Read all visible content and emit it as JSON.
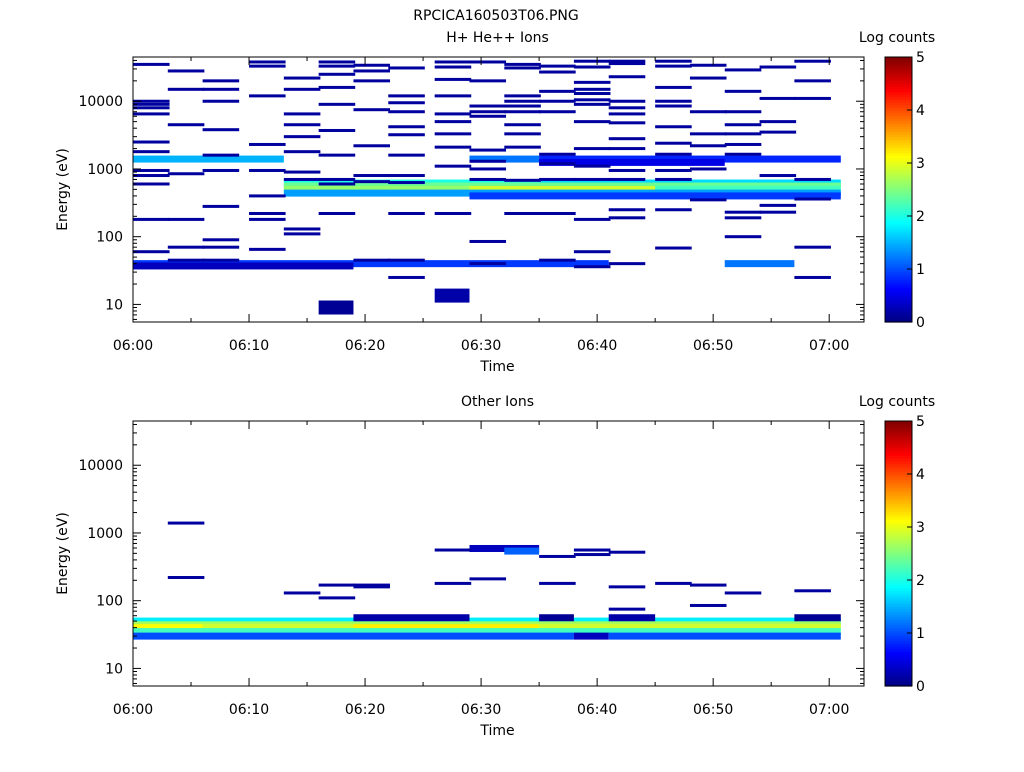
{
  "figure_title": "RPCICA160503T06.PNG",
  "colorbar": {
    "label": "Log counts",
    "ticks": [
      "0",
      "1",
      "2",
      "3",
      "4",
      "5"
    ]
  },
  "chart_data": [
    {
      "type": "heatmap",
      "title": "H+ He++ Ions",
      "xlabel": "Time",
      "ylabel": "Energy (eV)",
      "y_scale": "log",
      "xlim": [
        "06:00",
        "07:03"
      ],
      "ylim": [
        5.5,
        45000
      ],
      "x_ticks": [
        "06:00",
        "06:10",
        "06:20",
        "06:30",
        "06:40",
        "06:50",
        "07:00"
      ],
      "y_ticks": [
        "10",
        "100",
        "1000",
        "10000"
      ],
      "color_scale": {
        "name": "jet",
        "min": 0,
        "max": 5,
        "label": "Log counts"
      },
      "rows": [
        {
          "energy_ev": 1400,
          "start": "06:00",
          "end": "06:13",
          "log_counts": 1.5
        },
        {
          "energy_ev": 1400,
          "start": "06:29",
          "end": "06:35",
          "log_counts": 1.2
        },
        {
          "energy_ev": 1400,
          "start": "06:35",
          "end": "07:01",
          "log_counts": 0.8
        },
        {
          "energy_ev": 1250,
          "start": "06:35",
          "end": "06:51",
          "log_counts": 0.5
        },
        {
          "energy_ev": 620,
          "start": "06:13",
          "end": "06:35",
          "log_counts": 2.0
        },
        {
          "energy_ev": 620,
          "start": "06:35",
          "end": "07:01",
          "log_counts": 1.7
        },
        {
          "energy_ev": 560,
          "start": "06:13",
          "end": "07:01",
          "log_counts": 2.4
        },
        {
          "energy_ev": 500,
          "start": "06:13",
          "end": "06:29",
          "log_counts": 2.6
        },
        {
          "energy_ev": 500,
          "start": "06:29",
          "end": "06:45",
          "log_counts": 2.9
        },
        {
          "energy_ev": 500,
          "start": "06:45",
          "end": "07:01",
          "log_counts": 2.2
        },
        {
          "energy_ev": 440,
          "start": "06:13",
          "end": "07:01",
          "log_counts": 1.4
        },
        {
          "energy_ev": 400,
          "start": "06:29",
          "end": "07:01",
          "log_counts": 0.9
        },
        {
          "energy_ev": 40,
          "start": "06:00",
          "end": "06:41",
          "log_counts": 0.9
        },
        {
          "energy_ev": 40,
          "start": "06:51",
          "end": "06:57",
          "log_counts": 1.2
        },
        {
          "energy_ev": 37,
          "start": "06:00",
          "end": "06:19",
          "log_counts": 0.3
        },
        {
          "energy_ev": 9,
          "start": "06:16",
          "end": "06:19",
          "log_counts": 0.1
        },
        {
          "energy_ev": 13.5,
          "start": "06:26",
          "end": "06:29",
          "log_counts": 0.2
        }
      ],
      "sparse_bins": [
        {
          "time": "06:00",
          "energies_ev": [
            35000,
            10000,
            9000,
            8000,
            6500,
            2500,
            1800,
            950,
            800,
            600,
            180,
            60
          ]
        },
        {
          "time": "06:03",
          "energies_ev": [
            28000,
            15000,
            4500,
            850,
            180,
            70,
            45
          ]
        },
        {
          "time": "06:06",
          "energies_ev": [
            20000,
            15000,
            10000,
            3800,
            1600,
            950,
            280,
            90,
            70,
            45
          ]
        },
        {
          "time": "06:10",
          "energies_ev": [
            38000,
            33000,
            12000,
            2300,
            950,
            400,
            220,
            180,
            65
          ]
        },
        {
          "time": "06:13",
          "energies_ev": [
            22000,
            15000,
            6500,
            4500,
            3000,
            1800,
            900,
            700,
            130,
            110
          ]
        },
        {
          "time": "06:16",
          "energies_ev": [
            38000,
            33000,
            25000,
            16000,
            9000,
            3700,
            1600,
            700,
            600,
            220
          ]
        },
        {
          "time": "06:19",
          "energies_ev": [
            34000,
            28000,
            20000,
            7500,
            2200,
            800,
            650,
            45
          ]
        },
        {
          "time": "06:22",
          "energies_ev": [
            31000,
            12000,
            9500,
            7000,
            4200,
            3200,
            1600,
            800,
            630,
            220,
            45,
            25
          ]
        },
        {
          "time": "06:26",
          "energies_ev": [
            38000,
            32000,
            21000,
            12000,
            6500,
            5000,
            3300,
            2100,
            1100,
            220
          ]
        },
        {
          "time": "06:29",
          "energies_ev": [
            38000,
            20000,
            8500,
            7000,
            6000,
            1900,
            1300,
            1000,
            700,
            85,
            40
          ]
        },
        {
          "time": "06:32",
          "energies_ev": [
            35000,
            31000,
            12000,
            10000,
            8500,
            7000,
            4500,
            3300,
            2100,
            680,
            220
          ]
        },
        {
          "time": "06:35",
          "energies_ev": [
            33000,
            27000,
            14000,
            10000,
            7000,
            1650,
            1200,
            700,
            220,
            45
          ]
        },
        {
          "time": "06:38",
          "energies_ev": [
            39000,
            32000,
            19000,
            15000,
            13000,
            10500,
            9000,
            5000,
            2000,
            1100,
            700,
            180,
            60,
            36
          ]
        },
        {
          "time": "06:41",
          "energies_ev": [
            39000,
            36000,
            23000,
            10000,
            8000,
            6500,
            4800,
            2800,
            2000,
            950,
            700,
            250,
            190,
            40
          ]
        },
        {
          "time": "06:45",
          "energies_ev": [
            39000,
            33000,
            16000,
            10000,
            8500,
            4200,
            2400,
            1650,
            950,
            700,
            250,
            68
          ]
        },
        {
          "time": "06:48",
          "energies_ev": [
            34000,
            22000,
            7000,
            3300,
            2200,
            1000,
            350
          ]
        },
        {
          "time": "06:51",
          "energies_ev": [
            29000,
            14000,
            7000,
            4500,
            3300,
            2300,
            1650,
            230,
            190,
            100
          ]
        },
        {
          "time": "06:54",
          "energies_ev": [
            32000,
            11000,
            5000,
            3500,
            800,
            290,
            230
          ]
        },
        {
          "time": "06:57",
          "energies_ev": [
            39000,
            20000,
            11000,
            700,
            360,
            70,
            25
          ]
        }
      ]
    },
    {
      "type": "heatmap",
      "title": "Other Ions",
      "xlabel": "Time",
      "ylabel": "Energy (eV)",
      "y_scale": "log",
      "xlim": [
        "06:00",
        "07:03"
      ],
      "ylim": [
        5.5,
        45000
      ],
      "x_ticks": [
        "06:00",
        "06:10",
        "06:20",
        "06:30",
        "06:40",
        "06:50",
        "07:00"
      ],
      "y_ticks": [
        "10",
        "100",
        "1000",
        "10000"
      ],
      "color_scale": {
        "name": "jet",
        "min": 0,
        "max": 5,
        "label": "Log counts"
      },
      "rows": [
        {
          "energy_ev": 50,
          "start": "06:00",
          "end": "07:01",
          "log_counts": 1.8
        },
        {
          "energy_ev": 44,
          "start": "06:00",
          "end": "07:01",
          "log_counts": 2.7
        },
        {
          "energy_ev": 40,
          "start": "06:00",
          "end": "06:06",
          "log_counts": 3.1
        },
        {
          "energy_ev": 40,
          "start": "06:06",
          "end": "06:19",
          "log_counts": 2.9
        },
        {
          "energy_ev": 40,
          "start": "06:19",
          "end": "06:35",
          "log_counts": 3.2
        },
        {
          "energy_ev": 40,
          "start": "06:35",
          "end": "07:01",
          "log_counts": 2.9
        },
        {
          "energy_ev": 35,
          "start": "06:00",
          "end": "07:01",
          "log_counts": 2.2
        },
        {
          "energy_ev": 30,
          "start": "06:00",
          "end": "06:38",
          "log_counts": 1.0
        },
        {
          "energy_ev": 30,
          "start": "06:38",
          "end": "06:41",
          "log_counts": 0.3
        },
        {
          "energy_ev": 30,
          "start": "06:41",
          "end": "07:01",
          "log_counts": 1.0
        },
        {
          "energy_ev": 56,
          "start": "06:19",
          "end": "06:29",
          "log_counts": 0.2
        },
        {
          "energy_ev": 56,
          "start": "06:35",
          "end": "06:38",
          "log_counts": 0.1
        },
        {
          "energy_ev": 56,
          "start": "06:41",
          "end": "06:45",
          "log_counts": 0.2
        },
        {
          "energy_ev": 56,
          "start": "06:57",
          "end": "07:01",
          "log_counts": 0.1
        },
        {
          "energy_ev": 590,
          "start": "06:29",
          "end": "06:35",
          "log_counts": 0.3
        },
        {
          "energy_ev": 540,
          "start": "06:32",
          "end": "06:35",
          "log_counts": 1.1
        }
      ],
      "sparse_bins": [
        {
          "time": "06:03",
          "energies_ev": [
            1400,
            220
          ]
        },
        {
          "time": "06:13",
          "energies_ev": [
            130
          ]
        },
        {
          "time": "06:16",
          "energies_ev": [
            170,
            110
          ]
        },
        {
          "time": "06:19",
          "energies_ev": [
            170,
            160
          ]
        },
        {
          "time": "06:26",
          "energies_ev": [
            560,
            180
          ]
        },
        {
          "time": "06:29",
          "energies_ev": [
            210
          ]
        },
        {
          "time": "06:35",
          "energies_ev": [
            450,
            180
          ]
        },
        {
          "time": "06:38",
          "energies_ev": [
            560,
            480
          ]
        },
        {
          "time": "06:41",
          "energies_ev": [
            520,
            160,
            75
          ]
        },
        {
          "time": "06:45",
          "energies_ev": [
            180
          ]
        },
        {
          "time": "06:48",
          "energies_ev": [
            170,
            85
          ]
        },
        {
          "time": "06:51",
          "energies_ev": [
            130
          ]
        },
        {
          "time": "06:57",
          "energies_ev": [
            140
          ]
        }
      ]
    }
  ]
}
